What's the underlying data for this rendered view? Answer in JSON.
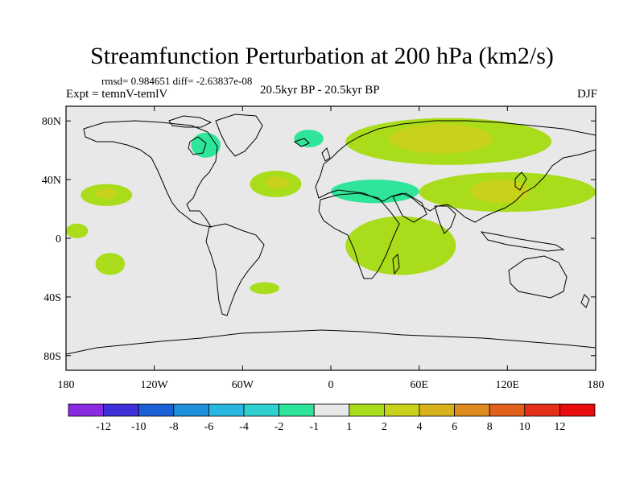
{
  "figure": {
    "title": "Streamfunction Perturbation at 200 hPa (km2/s)",
    "stats": "rmsd= 0.984651 diff= -2.63837e-08",
    "left_label": "Expt = temnV-temlV",
    "center_label": "20.5kyr BP - 20.5kyr BP",
    "right_label": "DJF"
  },
  "chart_data": {
    "type": "heatmap",
    "title": "Streamfunction Perturbation at 200 hPa (km2/s)",
    "xlabel": "",
    "ylabel": "",
    "xlim": [
      -180,
      180
    ],
    "ylim": [
      -90,
      90
    ],
    "x_ticks": [
      {
        "value": -180,
        "label": "180"
      },
      {
        "value": -120,
        "label": "120W"
      },
      {
        "value": -60,
        "label": "60W"
      },
      {
        "value": 0,
        "label": "0"
      },
      {
        "value": 60,
        "label": "60E"
      },
      {
        "value": 120,
        "label": "120E"
      },
      {
        "value": 180,
        "label": "180"
      }
    ],
    "y_ticks": [
      {
        "value": 80,
        "label": "80N"
      },
      {
        "value": 40,
        "label": "40N"
      },
      {
        "value": 0,
        "label": "0"
      },
      {
        "value": -40,
        "label": "40S"
      },
      {
        "value": -80,
        "label": "80S"
      }
    ],
    "colorbar": {
      "labels": [
        "-12",
        "-10",
        "-8",
        "-6",
        "-4",
        "-2",
        "-1",
        "1",
        "2",
        "4",
        "6",
        "8",
        "10",
        "12"
      ],
      "colors": [
        "#8a2be2",
        "#3f2fd8",
        "#1a5fd6",
        "#1e90dd",
        "#29b6e0",
        "#2fd0cf",
        "#2ee59a",
        "#e8e8e8",
        "#a9dc1a",
        "#c9d21a",
        "#d8b21c",
        "#dd8a1c",
        "#e0601c",
        "#e43018",
        "#e80c0c"
      ]
    },
    "regions": [
      {
        "class": "-2 to -1",
        "lon": [
          -135,
          -82
        ],
        "lat": [
          52,
          78
        ]
      },
      {
        "class": "-1 to 1",
        "lon": [
          -150,
          -70
        ],
        "lat": [
          40,
          82
        ]
      },
      {
        "class": "-2 to -1",
        "lon": [
          -95,
          -75
        ],
        "lat": [
          55,
          72
        ]
      },
      {
        "class": "-1 to 1",
        "lon": [
          -40,
          5
        ],
        "lat": [
          55,
          78
        ]
      },
      {
        "class": "-2 to -1",
        "lon": [
          -25,
          -5
        ],
        "lat": [
          62,
          74
        ]
      },
      {
        "class": "-1 to 1",
        "lon": [
          -110,
          -70
        ],
        "lat": [
          -2,
          40
        ]
      },
      {
        "class": "-1 to 1",
        "lon": [
          -180,
          -125
        ],
        "lat": [
          15,
          45
        ]
      },
      {
        "class": "1 to 2",
        "lon": [
          -170,
          -135
        ],
        "lat": [
          22,
          37
        ]
      },
      {
        "class": "2 to 4",
        "lon": [
          -160,
          -145
        ],
        "lat": [
          27,
          34
        ]
      },
      {
        "class": "1 to 2",
        "lon": [
          -55,
          -20
        ],
        "lat": [
          28,
          46
        ]
      },
      {
        "class": "2 to 4",
        "lon": [
          -45,
          -28
        ],
        "lat": [
          34,
          42
        ]
      },
      {
        "class": "1 to 2",
        "lon": [
          10,
          150
        ],
        "lat": [
          50,
          82
        ]
      },
      {
        "class": "2 to 4",
        "lon": [
          40,
          110
        ],
        "lat": [
          58,
          78
        ]
      },
      {
        "class": "-1 to 1",
        "lon": [
          -10,
          70
        ],
        "lat": [
          18,
          45
        ]
      },
      {
        "class": "-2 to -1",
        "lon": [
          0,
          60
        ],
        "lat": [
          24,
          40
        ]
      },
      {
        "class": "1 to 2",
        "lon": [
          60,
          180
        ],
        "lat": [
          18,
          45
        ]
      },
      {
        "class": "2 to 4",
        "lon": [
          95,
          135
        ],
        "lat": [
          24,
          40
        ]
      },
      {
        "class": "1 to 2",
        "lon": [
          10,
          85
        ],
        "lat": [
          -25,
          15
        ]
      },
      {
        "class": "1 to 2",
        "lon": [
          -160,
          -140
        ],
        "lat": [
          -25,
          -10
        ]
      },
      {
        "class": "1 to 2",
        "lon": [
          -180,
          -165
        ],
        "lat": [
          0,
          10
        ]
      },
      {
        "class": "-1 to 1",
        "lon": [
          100,
          170
        ],
        "lat": [
          -35,
          0
        ]
      },
      {
        "class": "-1 to 1",
        "lon": [
          140,
          165
        ],
        "lat": [
          -55,
          -35
        ]
      },
      {
        "class": "-1 to 1",
        "lon": [
          -75,
          -55
        ],
        "lat": [
          -55,
          -45
        ]
      },
      {
        "class": "1 to 2",
        "lon": [
          -55,
          -35
        ],
        "lat": [
          -38,
          -30
        ]
      },
      {
        "class": "-1 to 1",
        "lon": [
          -180,
          -160
        ],
        "lat": [
          -82,
          -68
        ]
      },
      {
        "class": "-1 to 1",
        "lon": [
          170,
          180
        ],
        "lat": [
          -82,
          -70
        ]
      },
      {
        "class": "-1 to 1",
        "lon": [
          70,
          90
        ],
        "lat": [
          -55,
          -40
        ]
      },
      {
        "class": "-1 to 1",
        "lon": [
          -180,
          -170
        ],
        "lat": [
          45,
          55
        ]
      }
    ]
  }
}
